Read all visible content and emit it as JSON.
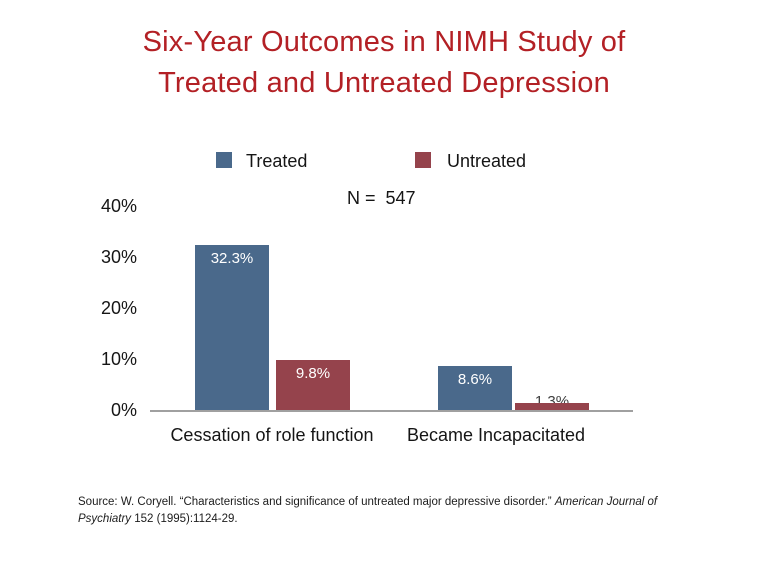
{
  "slide": {
    "title_lines": [
      "Six-Year Outcomes in NIMH Study of",
      "Treated and Untreated Depression"
    ],
    "title_color": "#b32025",
    "source": {
      "prefix": "Source: W. Coryell. “Characteristics and significance of untreated major depressive disorder.” ",
      "italic_part": "American Journal of Psychiatry",
      "suffix": " 152 (1995):1124-29."
    }
  },
  "chart_data": {
    "type": "bar",
    "title": "Six-Year Outcomes in NIMH Study of Treated and Untreated Depression",
    "n_label": "N =  547",
    "categories": [
      "Cessation of role function",
      "Became Incapacitated"
    ],
    "series": [
      {
        "name": "Treated",
        "color": "#4a698b",
        "values": [
          32.3,
          8.6
        ],
        "value_labels": [
          "32.3%",
          "8.6%"
        ]
      },
      {
        "name": "Untreated",
        "color": "#95434c",
        "values": [
          9.8,
          1.3
        ],
        "value_labels": [
          "9.8%",
          "1.3%"
        ]
      }
    ],
    "y_ticks": [
      {
        "value": 40,
        "label": "40%"
      },
      {
        "value": 30,
        "label": "30%"
      },
      {
        "value": 20,
        "label": "20%"
      },
      {
        "value": 10,
        "label": "10%"
      },
      {
        "value": 0,
        "label": "0%"
      }
    ],
    "ylim": [
      0,
      40
    ],
    "xlabel": "",
    "ylabel": "",
    "grid": false,
    "legend_position": "top",
    "axis_color": "#a0a0a0"
  }
}
